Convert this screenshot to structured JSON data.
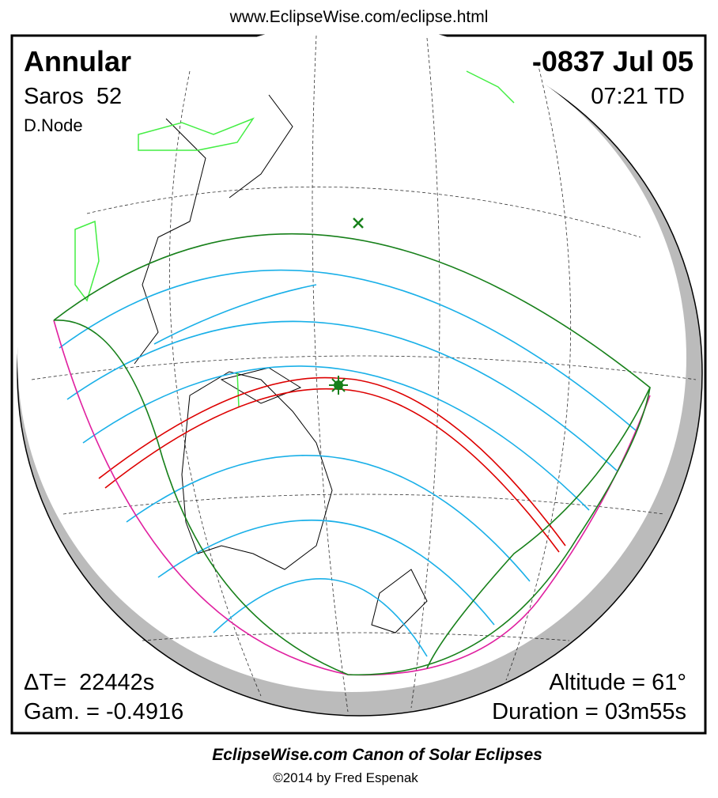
{
  "header": {
    "url": "www.EclipseWise.com/eclipse.html"
  },
  "panel": {
    "eclipse_type": "Annular",
    "date": "-0837 Jul 05",
    "saros": "Saros  52",
    "time": "07:21 TD",
    "node": "D.Node",
    "delta_t": "ΔT=  22442s",
    "gamma": "Gam. = -0.4916",
    "altitude": "Altitude = 61°",
    "duration": "Duration = 03m55s"
  },
  "footer": {
    "title": "EclipseWise.com Canon of Solar Eclipses",
    "copyright": "©2014 by Fred Espenak"
  }
}
